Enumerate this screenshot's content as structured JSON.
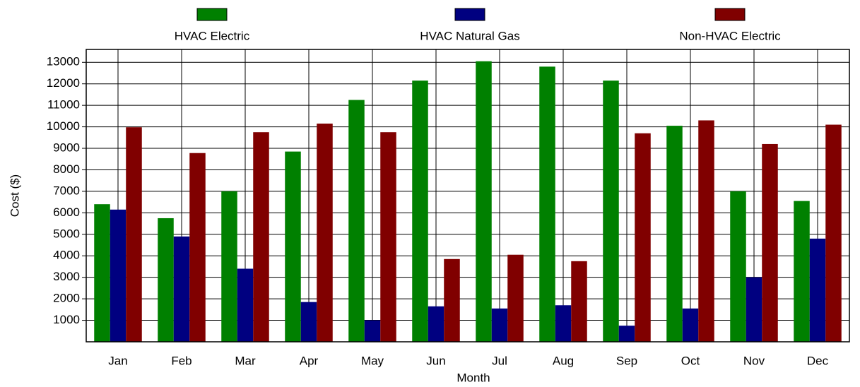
{
  "chart_data": {
    "type": "bar",
    "categories": [
      "Jan",
      "Feb",
      "Mar",
      "Apr",
      "May",
      "Jun",
      "Jul",
      "Aug",
      "Sep",
      "Oct",
      "Nov",
      "Dec"
    ],
    "series": [
      {
        "name": "HVAC Electric",
        "color": "#008000",
        "values": [
          6400,
          5750,
          7000,
          8850,
          11250,
          12150,
          13050,
          12800,
          12150,
          10050,
          7000,
          6550
        ]
      },
      {
        "name": "HVAC Natural Gas",
        "color": "#000080",
        "values": [
          6150,
          4900,
          3400,
          1850,
          1000,
          1650,
          1550,
          1700,
          750,
          1550,
          3000,
          4800
        ]
      },
      {
        "name": "Non-HVAC Electric",
        "color": "#800000",
        "values": [
          9980,
          8780,
          9750,
          10150,
          9750,
          3850,
          4050,
          3750,
          9700,
          10300,
          9200,
          10100
        ]
      }
    ],
    "xlabel": "Month",
    "ylabel": "Cost ($)",
    "ylim": [
      0,
      13600
    ],
    "yticks": [
      1000,
      2000,
      3000,
      4000,
      5000,
      6000,
      7000,
      8000,
      9000,
      10000,
      11000,
      12000,
      13000
    ],
    "grid": true,
    "legend": "top"
  }
}
